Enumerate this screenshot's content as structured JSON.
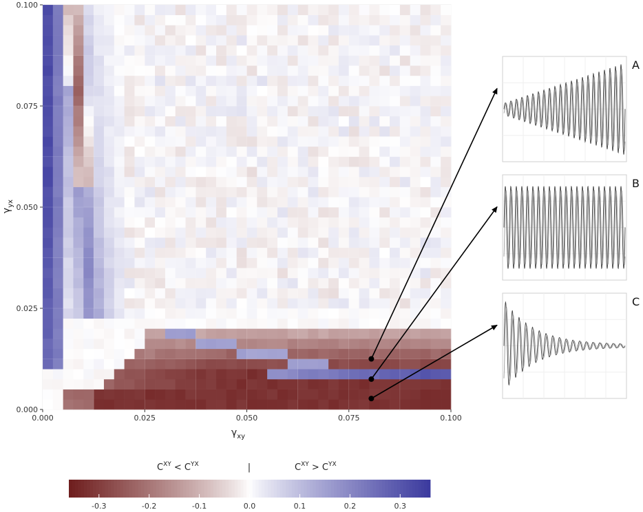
{
  "chart_data": [
    {
      "type": "heatmap",
      "x_axis": {
        "label": "γ",
        "label_sub": "xy",
        "range": [
          0.0,
          0.1
        ],
        "ticks": [
          "0.000",
          "0.025",
          "0.050",
          "0.075",
          "0.100"
        ]
      },
      "y_axis": {
        "label": "γ",
        "label_sub": "yx",
        "range": [
          0.0,
          0.1
        ],
        "ticks": [
          "0.000",
          "0.025",
          "0.050",
          "0.075",
          "0.100"
        ]
      },
      "grid": true,
      "value_range": [
        -0.36,
        0.36
      ],
      "bands": [
        {
          "region": "left band",
          "x": [
            0.001,
            0.005
          ],
          "y": [
            0.01,
            0.1
          ],
          "value": 0.32
        },
        {
          "region": "brown ridge",
          "x": [
            0.005,
            0.012
          ],
          "y": [
            0.06,
            0.1
          ],
          "value": -0.28
        },
        {
          "region": "bottom brown",
          "x": [
            0.01,
            0.1
          ],
          "y": [
            0.001,
            0.02
          ],
          "value": -0.3
        },
        {
          "region": "blue strip",
          "x": [
            0.055,
            0.1
          ],
          "y": [
            0.007,
            0.009
          ],
          "value": 0.3
        },
        {
          "region": "upper right",
          "x": [
            0.025,
            0.1
          ],
          "y": [
            0.025,
            0.1
          ],
          "value": 0.0
        }
      ],
      "markers": [
        {
          "x": 0.0805,
          "y": 0.0125,
          "links_to": "A"
        },
        {
          "x": 0.0805,
          "y": 0.0075,
          "links_to": "B"
        },
        {
          "x": 0.0805,
          "y": 0.0027,
          "links_to": "C"
        }
      ],
      "colorbar": {
        "ticks": [
          "-0.3",
          "-0.2",
          "-0.1",
          "0.0",
          "0.1",
          "0.2",
          "0.3"
        ],
        "tick_values": [
          -0.3,
          -0.2,
          -0.1,
          0.0,
          0.1,
          0.2,
          0.3
        ],
        "colors": {
          "low": "#6e1d1d",
          "mid": "#ffffff",
          "high": "#3b3a9e"
        },
        "left_title": {
          "base1": "C",
          "sup1": "XY",
          "op": " < ",
          "base2": "C",
          "sup2": "YX"
        },
        "middle": "|",
        "right_title": {
          "base1": "C",
          "sup1": "XY",
          "op": " > ",
          "base2": "C",
          "sup2": "YX"
        }
      }
    },
    {
      "type": "line",
      "panel": "A",
      "label": "A",
      "pattern": "growing oscillation",
      "amplitude_start": 0.12,
      "amplitude_end": 0.95,
      "cycles": 22
    },
    {
      "type": "line",
      "panel": "B",
      "label": "B",
      "pattern": "sustained oscillation",
      "amplitude_start": 0.85,
      "amplitude_end": 0.85,
      "cycles": 22
    },
    {
      "type": "line",
      "panel": "C",
      "label": "C",
      "pattern": "damped oscillation",
      "amplitude_start": 0.95,
      "amplitude_end": 0.04,
      "cycles": 18
    }
  ]
}
